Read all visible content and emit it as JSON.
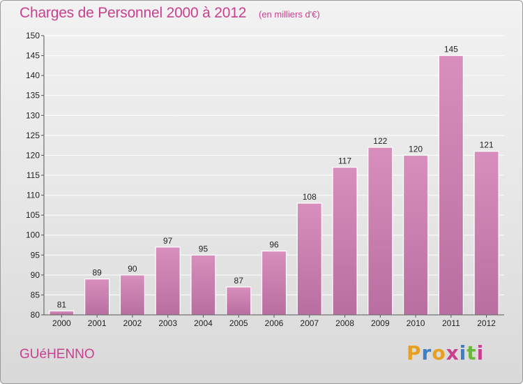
{
  "chart_data": {
    "type": "bar",
    "title": "Charges de Personnel 2000 à 2012",
    "subtitle": "(en milliers d'€)",
    "categories": [
      "2000",
      "2001",
      "2002",
      "2003",
      "2004",
      "2005",
      "2006",
      "2007",
      "2008",
      "2009",
      "2010",
      "2011",
      "2012"
    ],
    "values": [
      81,
      89,
      90,
      97,
      95,
      87,
      96,
      108,
      117,
      122,
      120,
      145,
      121
    ],
    "xlabel": "",
    "ylabel": "",
    "ylim": [
      80,
      150
    ],
    "yticks": [
      80,
      85,
      90,
      95,
      100,
      105,
      110,
      115,
      120,
      125,
      130,
      135,
      140,
      145,
      150
    ],
    "grid": "horizontal",
    "bar_color": "#d98fbd",
    "bar_color_dark": "#b86ea0"
  },
  "footer": {
    "location": "GUéHENNO",
    "logo_letters": [
      "P",
      "r",
      "o",
      "x",
      "i",
      "t",
      "i"
    ],
    "logo_colors": [
      "#e8a020",
      "#3a7fc8",
      "#e8a020",
      "#c8408f",
      "#3a7fc8",
      "#6bb83a",
      "#c8408f"
    ]
  }
}
